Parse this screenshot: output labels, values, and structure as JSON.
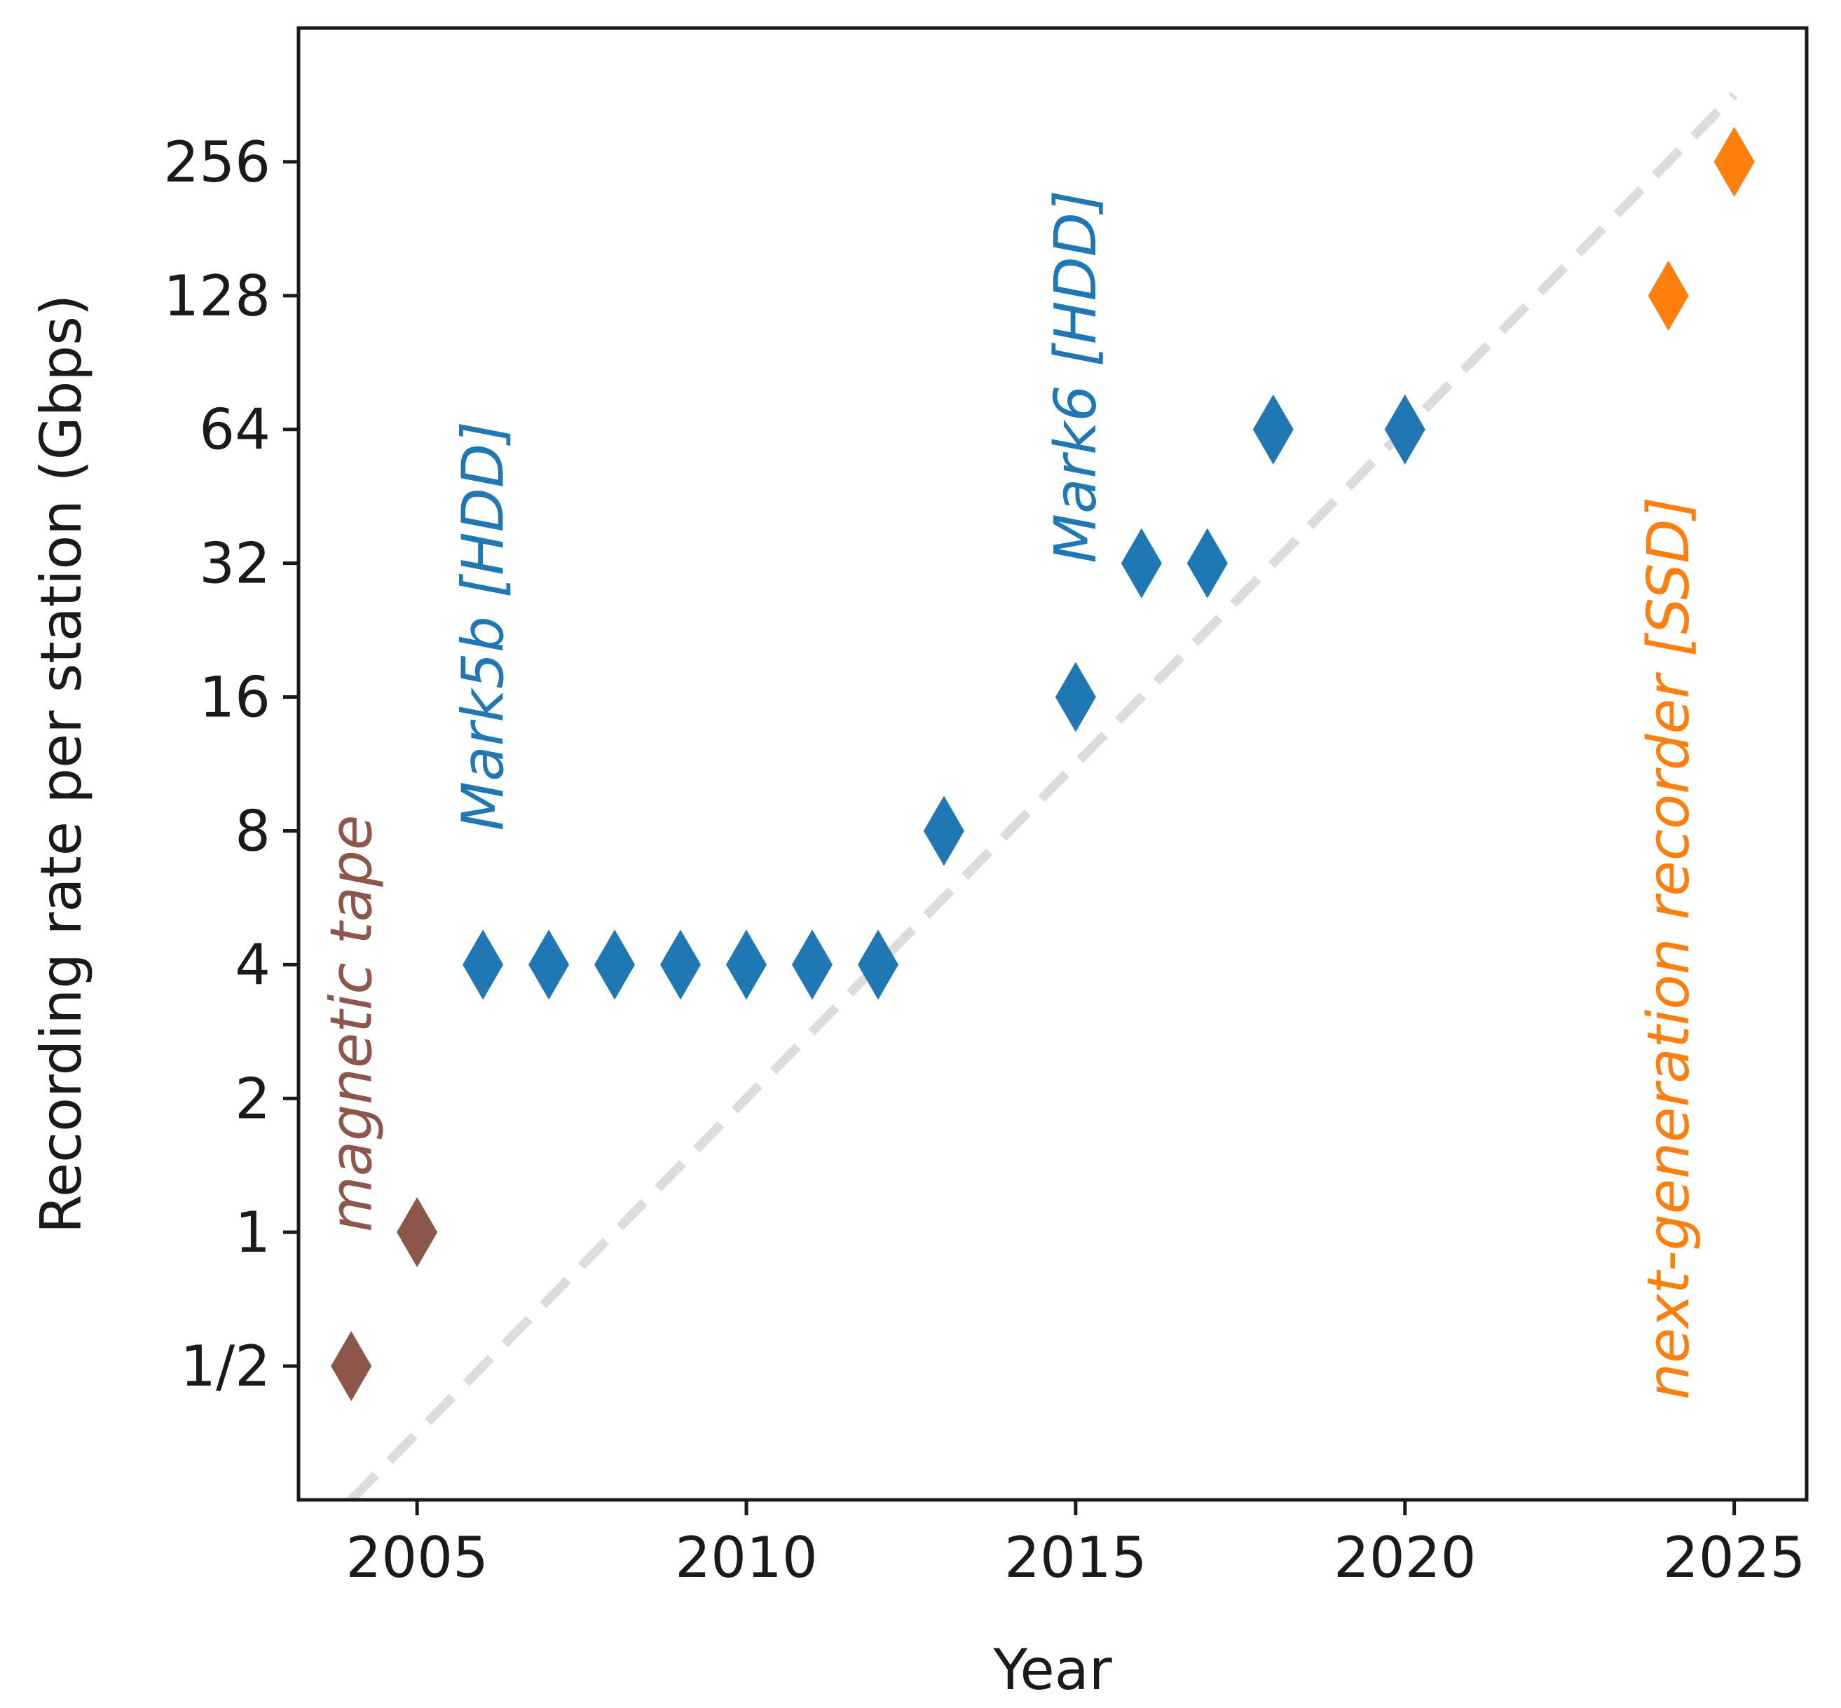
{
  "chart_data": {
    "type": "scatter",
    "xlabel": "Year",
    "ylabel": "Recording rate per station (Gbps)",
    "xlim": [
      2003.2,
      2026.1
    ],
    "ylim_log2": [
      -2,
      9
    ],
    "x_ticks": [
      2005,
      2010,
      2015,
      2020,
      2025
    ],
    "y_ticks": [
      {
        "value": 0.5,
        "label": "1/2"
      },
      {
        "value": 1,
        "label": "1"
      },
      {
        "value": 2,
        "label": "2"
      },
      {
        "value": 4,
        "label": "4"
      },
      {
        "value": 8,
        "label": "8"
      },
      {
        "value": 16,
        "label": "16"
      },
      {
        "value": 32,
        "label": "32"
      },
      {
        "value": 64,
        "label": "64"
      },
      {
        "value": 128,
        "label": "128"
      },
      {
        "value": 256,
        "label": "256"
      }
    ],
    "series": [
      {
        "name": "magnetic tape",
        "color": "#8c564b",
        "marker": "thin-diamond",
        "x": [
          2004,
          2005
        ],
        "y": [
          0.5,
          1
        ]
      },
      {
        "name": "HDD",
        "color": "#1f77b4",
        "marker": "thin-diamond",
        "x": [
          2006,
          2007,
          2008,
          2009,
          2010,
          2011,
          2012,
          2013,
          2015,
          2016,
          2017,
          2018,
          2020
        ],
        "y": [
          4,
          4,
          4,
          4,
          4,
          4,
          4,
          8,
          16,
          32,
          32,
          64,
          64
        ]
      },
      {
        "name": "next-generation recorder",
        "color": "#ff7f0e",
        "marker": "thin-diamond",
        "x": [
          2024,
          2025
        ],
        "y": [
          128,
          256
        ]
      }
    ],
    "trend_line": {
      "color": "#dcdcdc",
      "style": "dashed",
      "x": [
        2004,
        2025
      ],
      "y": [
        0.25,
        362
      ]
    },
    "annotations": [
      {
        "text": "magnetic tape",
        "x": 2004.3,
        "y": 1,
        "color": "#8c564b",
        "rotation": -90
      },
      {
        "text": "Mark5b [HDD]",
        "x": 2006.3,
        "y": 8,
        "color": "#1f77b4",
        "rotation": -90
      },
      {
        "text": "Mark6 [HDD]",
        "x": 2015.3,
        "y": 32,
        "color": "#1f77b4",
        "rotation": -90
      },
      {
        "text": "next-generation recorder [SSD]",
        "x": 2024.3,
        "y": 0.42,
        "color": "#ff7f0e",
        "rotation": -90
      }
    ]
  }
}
